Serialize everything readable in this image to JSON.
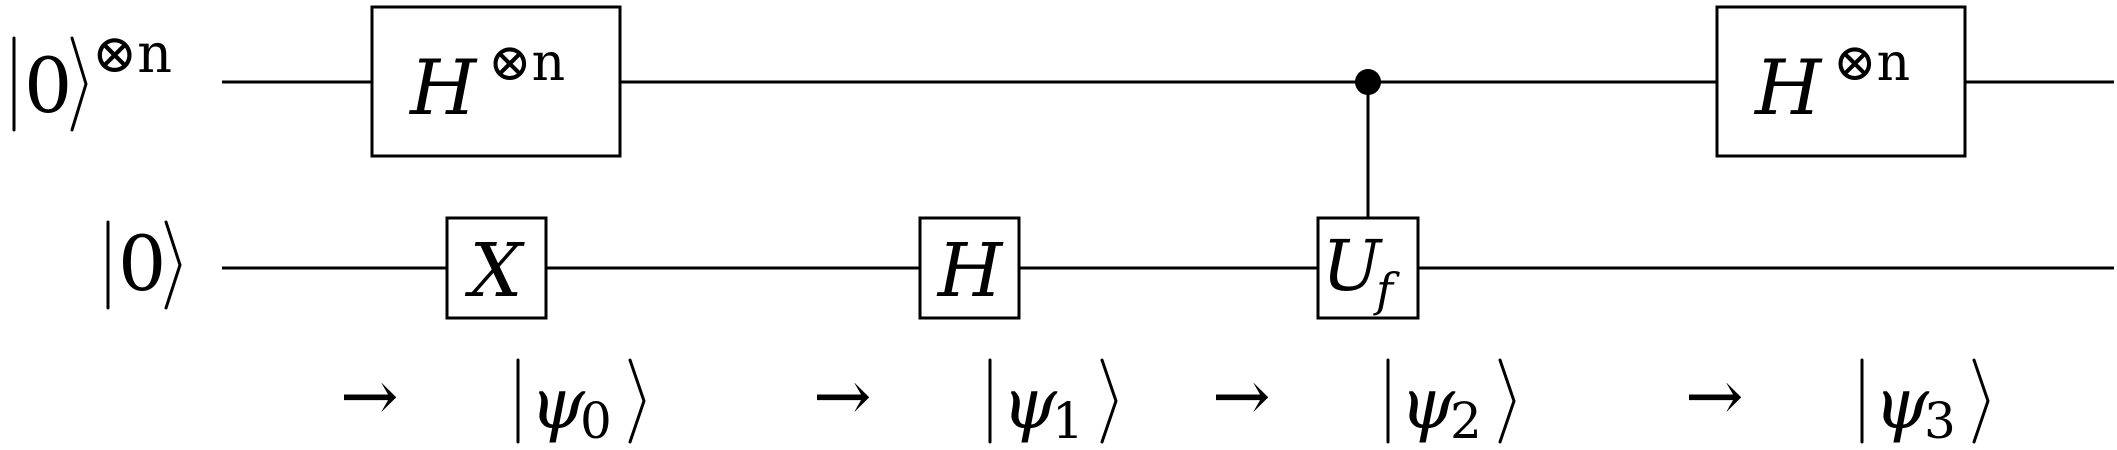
{
  "inputs": {
    "register_ket": "0",
    "register_power": "⊗n",
    "ancilla_ket": "0"
  },
  "gates": {
    "hadamard_n_first": {
      "base": "H",
      "power": "⊗n"
    },
    "x_gate": "X",
    "hadamard_single": "H",
    "oracle": {
      "base": "U",
      "sub": "f"
    },
    "hadamard_n_last": {
      "base": "H",
      "power": "⊗n"
    }
  },
  "states": [
    {
      "arrow": "→",
      "psi": "ψ",
      "index": "0"
    },
    {
      "arrow": "→",
      "psi": "ψ",
      "index": "1"
    },
    {
      "arrow": "→",
      "psi": "ψ",
      "index": "2"
    },
    {
      "arrow": "→",
      "psi": "ψ",
      "index": "3"
    }
  ]
}
